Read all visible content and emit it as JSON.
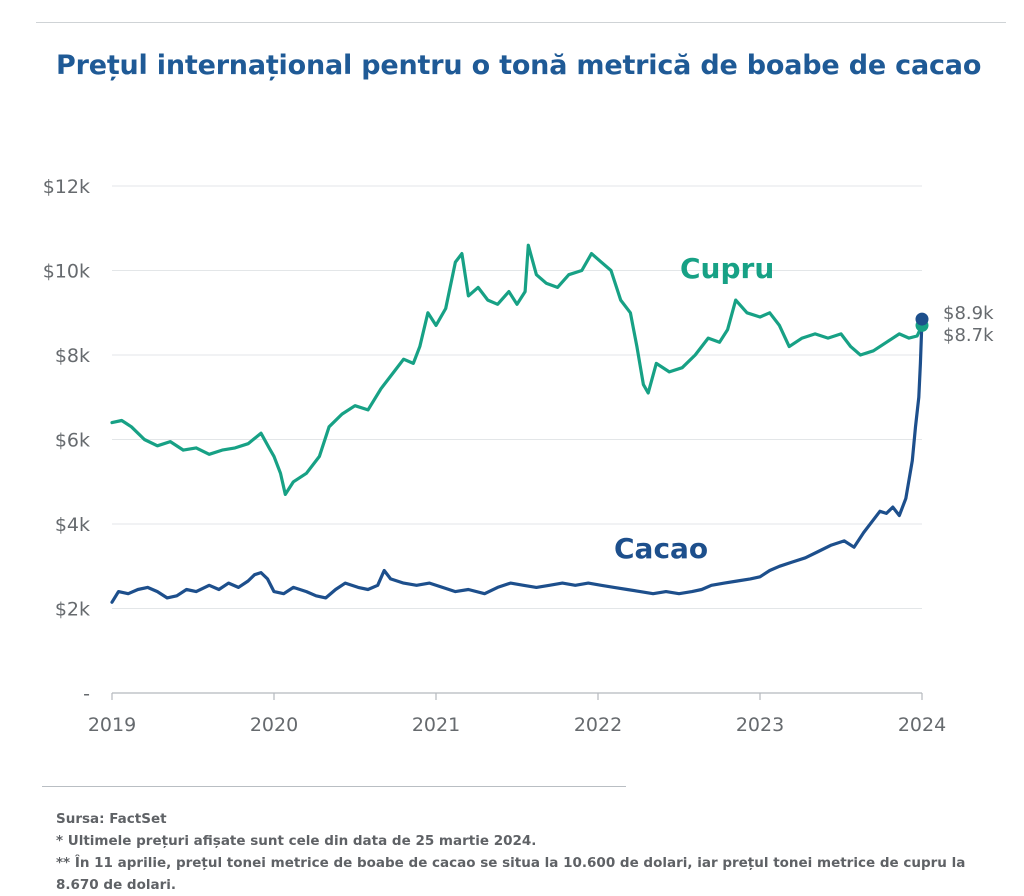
{
  "title": "Prețul internațional pentru o tonă metrică de boabe de cacao",
  "chart_data": {
    "type": "line",
    "title": "Prețul internațional pentru o tonă metrică de boabe de cacao",
    "xlabel": "",
    "ylabel": "",
    "x_ticks": [
      "2019",
      "2020",
      "2021",
      "2022",
      "2023",
      "2024"
    ],
    "y_ticks": [
      "-",
      "$2k",
      "$4k",
      "$6k",
      "$8k",
      "$10k",
      "$12k"
    ],
    "ylim": [
      0,
      12000
    ],
    "xlim": [
      2019.0,
      2024.0
    ],
    "grid": "horizontal",
    "series": [
      {
        "name": "Cupru",
        "color": "#17a185",
        "label_value": "$8.7k",
        "points": [
          [
            2019.0,
            6400
          ],
          [
            2019.06,
            6450
          ],
          [
            2019.12,
            6300
          ],
          [
            2019.2,
            6000
          ],
          [
            2019.28,
            5850
          ],
          [
            2019.36,
            5950
          ],
          [
            2019.44,
            5750
          ],
          [
            2019.52,
            5800
          ],
          [
            2019.6,
            5650
          ],
          [
            2019.68,
            5750
          ],
          [
            2019.76,
            5800
          ],
          [
            2019.84,
            5900
          ],
          [
            2019.92,
            6150
          ],
          [
            2019.97,
            5800
          ],
          [
            2020.0,
            5600
          ],
          [
            2020.04,
            5200
          ],
          [
            2020.07,
            4700
          ],
          [
            2020.12,
            5000
          ],
          [
            2020.2,
            5200
          ],
          [
            2020.28,
            5600
          ],
          [
            2020.34,
            6300
          ],
          [
            2020.42,
            6600
          ],
          [
            2020.5,
            6800
          ],
          [
            2020.58,
            6700
          ],
          [
            2020.66,
            7200
          ],
          [
            2020.74,
            7600
          ],
          [
            2020.8,
            7900
          ],
          [
            2020.86,
            7800
          ],
          [
            2020.9,
            8200
          ],
          [
            2020.95,
            9000
          ],
          [
            2021.0,
            8700
          ],
          [
            2021.06,
            9100
          ],
          [
            2021.12,
            10200
          ],
          [
            2021.16,
            10400
          ],
          [
            2021.2,
            9400
          ],
          [
            2021.26,
            9600
          ],
          [
            2021.32,
            9300
          ],
          [
            2021.38,
            9200
          ],
          [
            2021.45,
            9500
          ],
          [
            2021.5,
            9200
          ],
          [
            2021.55,
            9500
          ],
          [
            2021.57,
            10600
          ],
          [
            2021.62,
            9900
          ],
          [
            2021.68,
            9700
          ],
          [
            2021.75,
            9600
          ],
          [
            2021.82,
            9900
          ],
          [
            2021.9,
            10000
          ],
          [
            2021.96,
            10400
          ],
          [
            2022.02,
            10200
          ],
          [
            2022.08,
            10000
          ],
          [
            2022.14,
            9300
          ],
          [
            2022.2,
            9000
          ],
          [
            2022.24,
            8200
          ],
          [
            2022.28,
            7300
          ],
          [
            2022.31,
            7100
          ],
          [
            2022.36,
            7800
          ],
          [
            2022.44,
            7600
          ],
          [
            2022.52,
            7700
          ],
          [
            2022.6,
            8000
          ],
          [
            2022.68,
            8400
          ],
          [
            2022.75,
            8300
          ],
          [
            2022.8,
            8600
          ],
          [
            2022.85,
            9300
          ],
          [
            2022.92,
            9000
          ],
          [
            2023.0,
            8900
          ],
          [
            2023.06,
            9000
          ],
          [
            2023.12,
            8700
          ],
          [
            2023.18,
            8200
          ],
          [
            2023.26,
            8400
          ],
          [
            2023.34,
            8500
          ],
          [
            2023.42,
            8400
          ],
          [
            2023.5,
            8500
          ],
          [
            2023.56,
            8200
          ],
          [
            2023.62,
            8000
          ],
          [
            2023.7,
            8100
          ],
          [
            2023.78,
            8300
          ],
          [
            2023.86,
            8500
          ],
          [
            2023.92,
            8400
          ],
          [
            2023.97,
            8450
          ],
          [
            2024.0,
            8700
          ]
        ]
      },
      {
        "name": "Cacao",
        "color": "#1d4f8c",
        "label_value": "$8.9k",
        "points": [
          [
            2019.0,
            2150
          ],
          [
            2019.04,
            2400
          ],
          [
            2019.1,
            2350
          ],
          [
            2019.16,
            2450
          ],
          [
            2019.22,
            2500
          ],
          [
            2019.28,
            2400
          ],
          [
            2019.34,
            2250
          ],
          [
            2019.4,
            2300
          ],
          [
            2019.46,
            2450
          ],
          [
            2019.52,
            2400
          ],
          [
            2019.6,
            2550
          ],
          [
            2019.66,
            2450
          ],
          [
            2019.72,
            2600
          ],
          [
            2019.78,
            2500
          ],
          [
            2019.84,
            2650
          ],
          [
            2019.88,
            2800
          ],
          [
            2019.92,
            2850
          ],
          [
            2019.96,
            2700
          ],
          [
            2020.0,
            2400
          ],
          [
            2020.06,
            2350
          ],
          [
            2020.12,
            2500
          ],
          [
            2020.2,
            2400
          ],
          [
            2020.26,
            2300
          ],
          [
            2020.32,
            2250
          ],
          [
            2020.38,
            2450
          ],
          [
            2020.44,
            2600
          ],
          [
            2020.52,
            2500
          ],
          [
            2020.58,
            2450
          ],
          [
            2020.64,
            2550
          ],
          [
            2020.68,
            2900
          ],
          [
            2020.72,
            2700
          ],
          [
            2020.8,
            2600
          ],
          [
            2020.88,
            2550
          ],
          [
            2020.96,
            2600
          ],
          [
            2021.04,
            2500
          ],
          [
            2021.12,
            2400
          ],
          [
            2021.2,
            2450
          ],
          [
            2021.3,
            2350
          ],
          [
            2021.38,
            2500
          ],
          [
            2021.46,
            2600
          ],
          [
            2021.54,
            2550
          ],
          [
            2021.62,
            2500
          ],
          [
            2021.7,
            2550
          ],
          [
            2021.78,
            2600
          ],
          [
            2021.86,
            2550
          ],
          [
            2021.94,
            2600
          ],
          [
            2022.02,
            2550
          ],
          [
            2022.1,
            2500
          ],
          [
            2022.18,
            2450
          ],
          [
            2022.26,
            2400
          ],
          [
            2022.34,
            2350
          ],
          [
            2022.42,
            2400
          ],
          [
            2022.5,
            2350
          ],
          [
            2022.58,
            2400
          ],
          [
            2022.64,
            2450
          ],
          [
            2022.7,
            2550
          ],
          [
            2022.78,
            2600
          ],
          [
            2022.86,
            2650
          ],
          [
            2022.94,
            2700
          ],
          [
            2023.0,
            2750
          ],
          [
            2023.06,
            2900
          ],
          [
            2023.12,
            3000
          ],
          [
            2023.2,
            3100
          ],
          [
            2023.28,
            3200
          ],
          [
            2023.36,
            3350
          ],
          [
            2023.44,
            3500
          ],
          [
            2023.52,
            3600
          ],
          [
            2023.58,
            3450
          ],
          [
            2023.64,
            3800
          ],
          [
            2023.7,
            4100
          ],
          [
            2023.74,
            4300
          ],
          [
            2023.78,
            4250
          ],
          [
            2023.82,
            4400
          ],
          [
            2023.86,
            4200
          ],
          [
            2023.9,
            4600
          ],
          [
            2023.94,
            5500
          ],
          [
            2023.96,
            6300
          ],
          [
            2023.98,
            7000
          ],
          [
            2023.99,
            7800
          ],
          [
            2024.0,
            8850
          ]
        ]
      }
    ],
    "series_labels": [
      {
        "text": "Cupru",
        "series": "Cupru"
      },
      {
        "text": "Cacao",
        "series": "Cacao"
      }
    ]
  },
  "notes": {
    "source": "Sursa: FactSet",
    "note1": "* Ultimele prețuri afișate sunt cele din data de 25 martie 2024.",
    "note2": "** În 11 aprilie, prețul tonei metrice de boabe de cacao se situa la 10.600 de dolari, iar prețul tonei metrice de cupru la",
    "note3": "8.670 de dolari."
  }
}
